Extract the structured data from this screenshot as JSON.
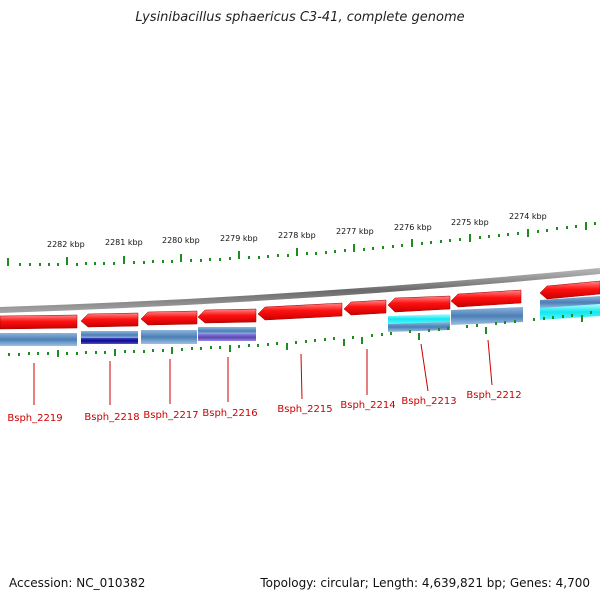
{
  "title": "Lysinibacillus sphaericus C3-41, complete genome",
  "footer": {
    "accession": "Accession: NC_010382",
    "summary": "Topology: circular; Length: 4,639,821 bp; Genes: 4,700"
  },
  "scale_labels": [
    "2282 kbp",
    "2281 kbp",
    "2280 kbp",
    "2279 kbp",
    "2278 kbp",
    "2277 kbp",
    "2276 kbp",
    "2275 kbp",
    "2274 kbp"
  ],
  "gene_labels": [
    "Bsph_2219",
    "Bsph_2218",
    "Bsph_2217",
    "Bsph_2216",
    "Bsph_2215",
    "Bsph_2214",
    "Bsph_2213",
    "Bsph_2212"
  ],
  "colors": {
    "cds": "#ff0000",
    "backbone": "#808080",
    "tick": "#1e8c1e",
    "label": "#cc0000",
    "blast_blue": "#4a7fb5",
    "blast_navy": "#0a0a8c",
    "blast_purple": "#5a4ab0",
    "blast_cyan": "#10e8f0"
  }
}
